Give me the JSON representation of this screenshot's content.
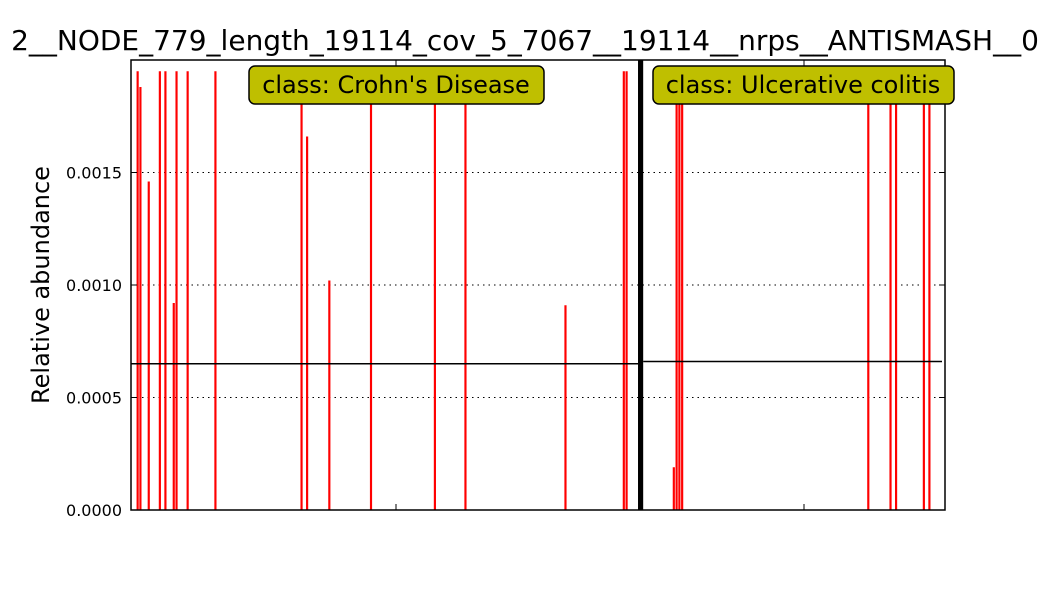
{
  "chart_data": {
    "type": "bar",
    "title": "2__NODE_779_length_19114_cov_5_7067__19114__nrps__ANTISMASH__0",
    "xlabel": "",
    "ylabel": "Relative abundance",
    "ylim": [
      0,
      0.002
    ],
    "yticks": [
      "0.0000",
      "0.0005",
      "0.0010",
      "0.0015"
    ],
    "ytick_values": [
      0,
      0.0005,
      0.001,
      0.0015
    ],
    "grid": "y-dotted",
    "bar_color": "#ff0000",
    "divider_color": "#000000",
    "annotation_box_color": "#bfbf00",
    "groups": [
      {
        "annotation": "class: Crohn's Disease",
        "mean": 0.00065,
        "values": [
          0,
          0,
          0.00195,
          0.00188,
          0,
          0,
          0.00146,
          0,
          0,
          0,
          0.00195,
          0,
          0.00195,
          0,
          0,
          0.00092,
          0.00195,
          0,
          0,
          0,
          0.00195,
          0,
          0,
          0,
          0,
          0,
          0,
          0,
          0,
          0,
          0.00195,
          0,
          0,
          0,
          0,
          0,
          0,
          0,
          0,
          0,
          0,
          0,
          0,
          0,
          0,
          0,
          0,
          0,
          0,
          0,
          0,
          0,
          0,
          0,
          0,
          0,
          0,
          0,
          0,
          0,
          0,
          0.00195,
          0,
          0.00166,
          0,
          0,
          0,
          0,
          0,
          0,
          0,
          0.00102,
          0,
          0,
          0,
          0,
          0,
          0,
          0,
          0,
          0,
          0,
          0,
          0,
          0,
          0,
          0.00195,
          0,
          0,
          0,
          0,
          0,
          0,
          0,
          0,
          0,
          0,
          0,
          0,
          0,
          0,
          0,
          0,
          0,
          0,
          0,
          0,
          0,
          0,
          0.00195,
          0,
          0,
          0,
          0,
          0,
          0,
          0,
          0,
          0,
          0,
          0.00195,
          0,
          0,
          0,
          0,
          0,
          0,
          0,
          0,
          0,
          0,
          0,
          0,
          0,
          0,
          0,
          0,
          0,
          0,
          0,
          0,
          0,
          0,
          0,
          0,
          0,
          0,
          0,
          0,
          0,
          0,
          0,
          0,
          0,
          0,
          0,
          0.00091,
          0,
          0,
          0,
          0,
          0,
          0,
          0,
          0,
          0,
          0,
          0,
          0,
          0,
          0,
          0,
          0,
          0,
          0,
          0,
          0,
          0.00195,
          0.00195,
          0,
          0,
          0
        ]
      },
      {
        "annotation": "class: Ulcerative colitis",
        "mean": 0.00066,
        "values": [
          0,
          0,
          0,
          0,
          0,
          0,
          0,
          0,
          0,
          0,
          0.00019,
          0.00195,
          0.00195,
          0.00195,
          0,
          0,
          0,
          0,
          0,
          0,
          0,
          0,
          0,
          0,
          0,
          0,
          0,
          0,
          0,
          0,
          0,
          0,
          0,
          0,
          0,
          0,
          0,
          0,
          0,
          0,
          0,
          0,
          0,
          0,
          0,
          0,
          0,
          0,
          0,
          0,
          0,
          0,
          0,
          0,
          0,
          0,
          0,
          0,
          0,
          0,
          0,
          0,
          0,
          0,
          0,
          0,
          0,
          0,
          0,
          0,
          0,
          0,
          0,
          0,
          0,
          0,
          0,
          0,
          0,
          0,
          0.00195,
          0,
          0,
          0,
          0,
          0,
          0,
          0,
          0.00195,
          0,
          0.00195,
          0,
          0,
          0,
          0,
          0,
          0,
          0,
          0,
          0,
          0.00195,
          0,
          0.00195,
          0,
          0,
          0,
          0,
          0
        ]
      }
    ]
  }
}
